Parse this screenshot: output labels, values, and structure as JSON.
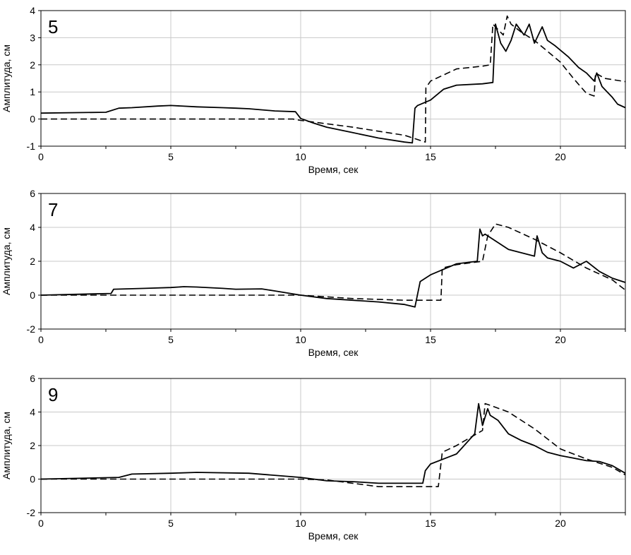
{
  "chart_data": [
    {
      "type": "line",
      "panel_label": "5",
      "xlabel": "Время, сек",
      "ylabel": "Амплитуда, см",
      "xlim": [
        0,
        22.5
      ],
      "ylim": [
        -1,
        4
      ],
      "xticks": [
        0,
        5,
        10,
        15,
        20
      ],
      "yticks": [
        -1,
        0,
        1,
        2,
        3,
        4
      ],
      "grid": true,
      "series": [
        {
          "style": "solid",
          "x": [
            0,
            2.5,
            3,
            3.5,
            4.5,
            5,
            6,
            7,
            7.5,
            8,
            9,
            9.8,
            10,
            10.5,
            11,
            12,
            13,
            14,
            14.3,
            14.4,
            14.5,
            15,
            15.5,
            16,
            17,
            17.4,
            17.5,
            17.7,
            17.9,
            18.1,
            18.3,
            18.6,
            18.8,
            19,
            19.3,
            19.5,
            19.8,
            20.3,
            20.7,
            21,
            21.3,
            21.4,
            21.6,
            22,
            22.2,
            22.5
          ],
          "y": [
            0.22,
            0.25,
            0.4,
            0.42,
            0.48,
            0.5,
            0.45,
            0.42,
            0.4,
            0.38,
            0.3,
            0.27,
            0.02,
            -0.15,
            -0.3,
            -0.5,
            -0.7,
            -0.85,
            -0.88,
            0.4,
            0.5,
            0.7,
            1.1,
            1.25,
            1.3,
            1.35,
            3.5,
            2.8,
            2.5,
            2.9,
            3.5,
            3.1,
            3.5,
            2.8,
            3.4,
            2.9,
            2.7,
            2.3,
            1.9,
            1.7,
            1.4,
            1.7,
            1.2,
            0.8,
            0.55,
            0.42
          ]
        },
        {
          "style": "dashed",
          "x": [
            0,
            9.7,
            10,
            12,
            14,
            14.8,
            14.82,
            15,
            16,
            17,
            17.3,
            17.4,
            17.8,
            17.95,
            18.1,
            18.5,
            19,
            19.5,
            20,
            20.5,
            21,
            21.3,
            21.35,
            21.7,
            22.5
          ],
          "y": [
            0,
            0,
            -0.05,
            -0.3,
            -0.6,
            -0.85,
            1.15,
            1.4,
            1.85,
            1.95,
            2,
            3.5,
            3.1,
            3.8,
            3.5,
            3.2,
            2.9,
            2.5,
            2.1,
            1.5,
            0.95,
            0.85,
            1.7,
            1.5,
            1.38
          ]
        }
      ]
    },
    {
      "type": "line",
      "panel_label": "7",
      "xlabel": "Время, сек",
      "ylabel": "Амплитуда, см",
      "xlim": [
        0,
        22.5
      ],
      "ylim": [
        -2,
        6
      ],
      "xticks": [
        0,
        5,
        10,
        15,
        20
      ],
      "yticks": [
        -2,
        0,
        2,
        4,
        6
      ],
      "grid": true,
      "series": [
        {
          "style": "solid",
          "x": [
            0,
            2.7,
            2.8,
            4,
            5,
            5.5,
            6,
            7,
            7.5,
            8.5,
            9,
            10,
            11,
            12,
            13,
            14,
            14.4,
            14.6,
            15,
            16,
            16.8,
            16.9,
            17,
            17.1,
            17.3,
            18,
            19,
            19.1,
            19.3,
            19.5,
            20,
            20.5,
            21,
            21.5,
            22,
            22.5
          ],
          "y": [
            0,
            0.1,
            0.35,
            0.4,
            0.45,
            0.5,
            0.48,
            0.4,
            0.35,
            0.37,
            0.25,
            0,
            -0.2,
            -0.3,
            -0.4,
            -0.55,
            -0.7,
            0.8,
            1.2,
            1.85,
            2,
            3.9,
            3.5,
            3.6,
            3.4,
            2.7,
            2.3,
            3.5,
            2.5,
            2.2,
            2,
            1.6,
            2,
            1.4,
            1,
            0.75
          ]
        },
        {
          "style": "dashed",
          "x": [
            0,
            10,
            11,
            12,
            14,
            15.4,
            15.45,
            16,
            17,
            17.2,
            17.5,
            18,
            19,
            20,
            21,
            22,
            22.5
          ],
          "y": [
            0,
            0,
            -0.1,
            -0.2,
            -0.3,
            -0.3,
            1.6,
            1.8,
            2,
            3.5,
            4.2,
            4,
            3.3,
            2.5,
            1.6,
            0.9,
            0.3
          ]
        }
      ]
    },
    {
      "type": "line",
      "panel_label": "9",
      "xlabel": "Время, сек",
      "ylabel": "Амплитуда, см",
      "xlim": [
        0,
        22.5
      ],
      "ylim": [
        -2,
        6
      ],
      "xticks": [
        0,
        5,
        10,
        15,
        20
      ],
      "yticks": [
        -2,
        0,
        2,
        4,
        6
      ],
      "grid": true,
      "series": [
        {
          "style": "solid",
          "x": [
            0,
            3,
            3.5,
            5,
            6,
            8,
            10,
            11,
            12,
            13,
            14,
            14.7,
            14.8,
            15,
            16,
            16.7,
            16.85,
            17,
            17.2,
            17.3,
            17.6,
            18,
            18.5,
            19,
            19.5,
            20,
            20.5,
            21,
            21.5,
            22,
            22.5
          ],
          "y": [
            0,
            0.1,
            0.3,
            0.35,
            0.4,
            0.35,
            0.1,
            -0.1,
            -0.15,
            -0.25,
            -0.25,
            -0.25,
            0.5,
            0.9,
            1.5,
            2.7,
            4.5,
            3.2,
            4.2,
            3.8,
            3.5,
            2.7,
            2.3,
            2,
            1.6,
            1.4,
            1.25,
            1.1,
            1.05,
            0.8,
            0.35
          ]
        },
        {
          "style": "dashed",
          "x": [
            0,
            10,
            11,
            12,
            13,
            14,
            15.3,
            15.45,
            16,
            17,
            17.1,
            17.3,
            18,
            19,
            20,
            21,
            22,
            22.5
          ],
          "y": [
            0,
            0,
            -0.05,
            -0.25,
            -0.45,
            -0.45,
            -0.45,
            1.6,
            2,
            2.9,
            4.5,
            4.4,
            4,
            3,
            1.8,
            1.2,
            0.7,
            0.25
          ]
        }
      ]
    }
  ]
}
